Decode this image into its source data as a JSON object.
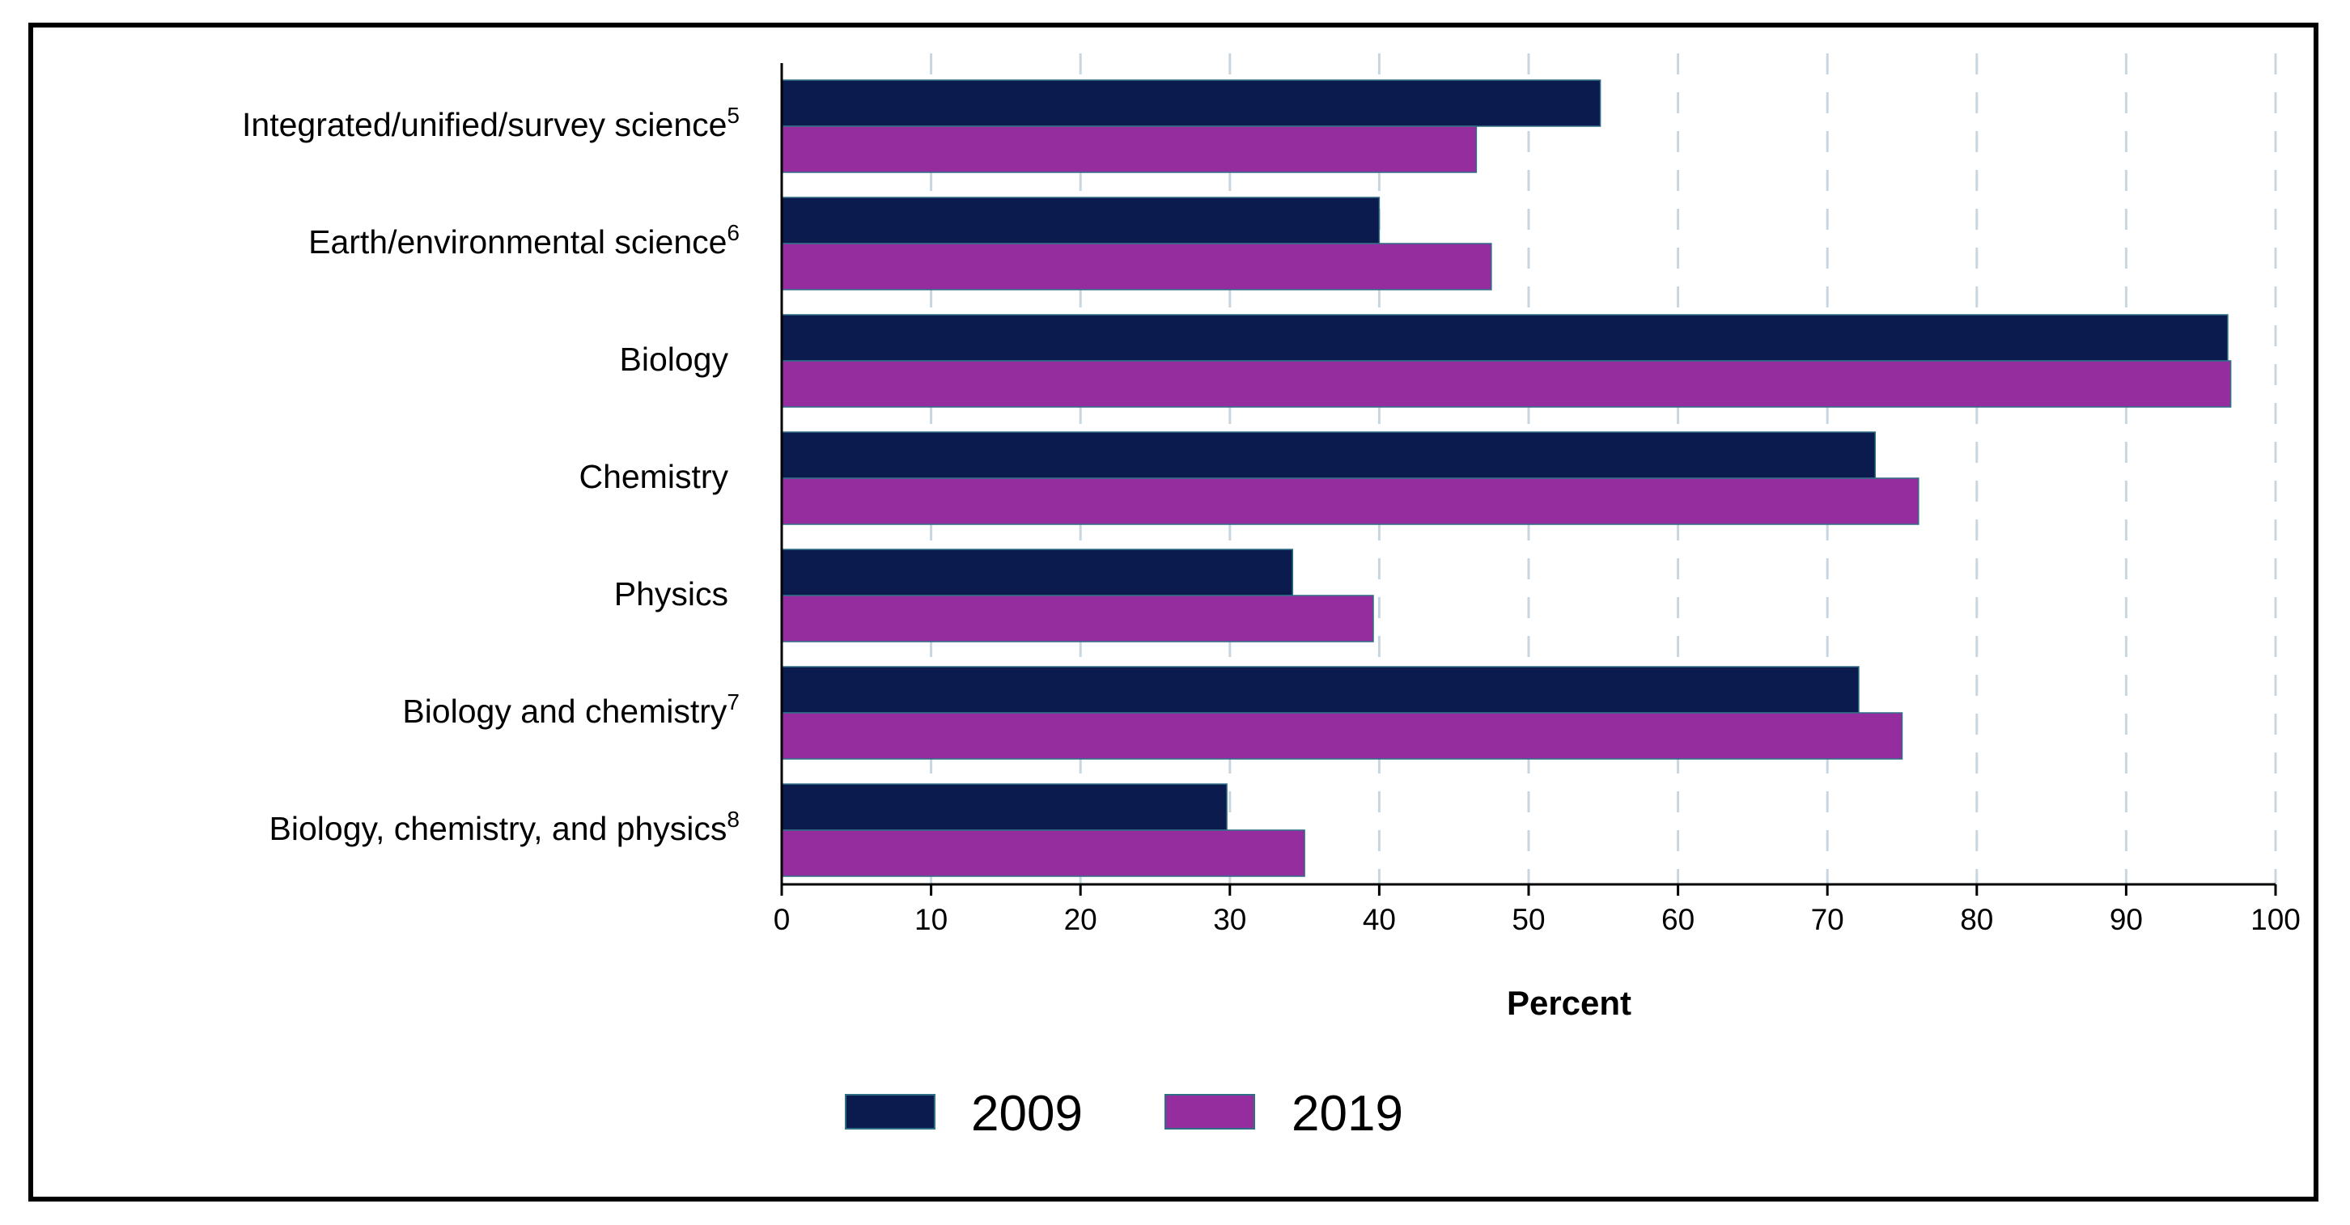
{
  "chart_data": {
    "type": "bar",
    "orientation": "horizontal",
    "categories": [
      {
        "label": "Integrated/unified/survey science",
        "sup": "5"
      },
      {
        "label": "Earth/environmental science",
        "sup": "6"
      },
      {
        "label": "Biology",
        "sup": ""
      },
      {
        "label": "Chemistry",
        "sup": ""
      },
      {
        "label": "Physics",
        "sup": ""
      },
      {
        "label": "Biology and chemistry",
        "sup": "7"
      },
      {
        "label": "Biology, chemistry, and physics",
        "sup": "8"
      }
    ],
    "series": [
      {
        "name": "2009",
        "color": "#0b1b4d",
        "values": [
          54.8,
          40.0,
          96.8,
          73.2,
          34.2,
          72.1,
          29.8
        ]
      },
      {
        "name": "2019",
        "color": "#962d9e",
        "values": [
          46.5,
          47.5,
          97.0,
          76.1,
          39.6,
          75.0,
          35.0
        ]
      }
    ],
    "xlabel": "Percent",
    "xlim": [
      0,
      100
    ],
    "xticks": [
      0,
      10,
      20,
      30,
      40,
      50,
      60,
      70,
      80,
      90,
      100
    ],
    "grid": "vertical dashed",
    "legend": "bottom-center"
  }
}
